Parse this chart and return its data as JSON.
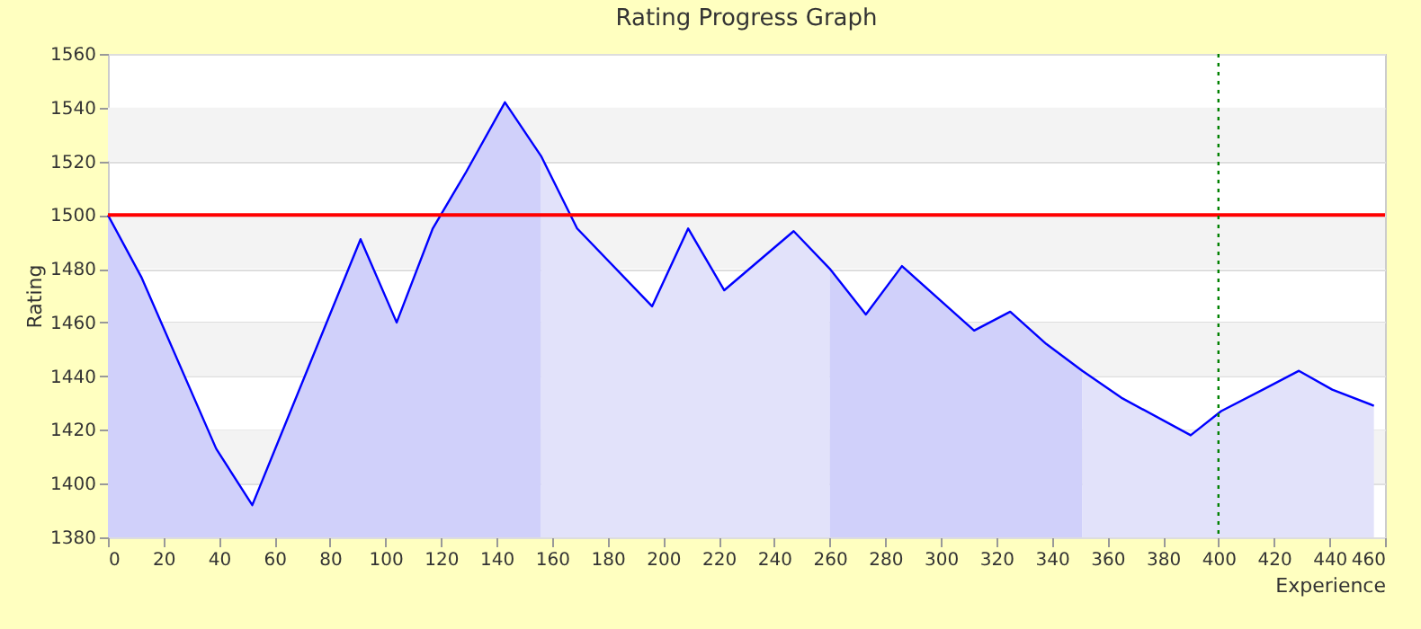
{
  "chart_data": {
    "type": "line",
    "title": "Rating Progress Graph",
    "xlabel": "Experience",
    "ylabel": "Rating",
    "xlim": [
      0,
      460
    ],
    "xticks": [
      0,
      20,
      40,
      60,
      80,
      100,
      120,
      140,
      160,
      180,
      200,
      220,
      240,
      260,
      280,
      300,
      320,
      340,
      360,
      380,
      400,
      420,
      440,
      460
    ],
    "ylim": [
      1380,
      1560
    ],
    "yticks": [
      1380,
      1400,
      1420,
      1440,
      1460,
      1480,
      1500,
      1520,
      1540,
      1560
    ],
    "grid": "y",
    "marker": "none",
    "line_style": "solid",
    "series": [
      {
        "type": "area",
        "color": "#d0d0fa",
        "x": [
          0,
          12,
          39,
          52,
          91,
          104,
          117,
          129,
          143,
          156
        ],
        "values": [
          1500,
          1477,
          1413,
          1392,
          1491,
          1460,
          1495,
          1516,
          1542,
          1522
        ]
      },
      {
        "type": "area",
        "color": "#e2e2fa",
        "x": [
          156,
          169,
          196,
          209,
          222,
          247,
          260
        ],
        "values": [
          1522,
          1495,
          1466,
          1495,
          1472,
          1494,
          1480
        ]
      },
      {
        "type": "area",
        "color": "#d0d0fa",
        "x": [
          260,
          273,
          286,
          312,
          325,
          338,
          351
        ],
        "values": [
          1480,
          1463,
          1481,
          1457,
          1464,
          1452,
          1442
        ]
      },
      {
        "type": "area",
        "color": "#e2e2fa",
        "x": [
          351,
          365,
          390,
          401,
          416,
          429,
          441,
          456
        ],
        "values": [
          1442,
          1432,
          1418,
          1427,
          1435,
          1442,
          1435,
          1429
        ]
      },
      {
        "color": "#0000ff",
        "x": [
          0,
          12,
          39,
          52,
          91,
          104,
          117,
          129,
          143,
          156,
          169,
          196,
          209,
          222,
          247,
          260,
          273,
          286,
          312,
          325,
          338,
          351,
          365,
          390,
          401,
          416,
          429,
          441,
          456
        ],
        "values": [
          1500,
          1477,
          1413,
          1392,
          1491,
          1460,
          1495,
          1516,
          1542,
          1522,
          1495,
          1466,
          1495,
          1472,
          1494,
          1480,
          1463,
          1481,
          1457,
          1464,
          1452,
          1442,
          1432,
          1418,
          1427,
          1435,
          1442,
          1435,
          1429
        ]
      }
    ],
    "ref_lines": [
      {
        "axis": "y",
        "value": 1500,
        "color": "#ff0000",
        "line_style": "solid"
      },
      {
        "axis": "x",
        "value": 400,
        "color": "#008000",
        "line_style": "dotted"
      }
    ]
  }
}
